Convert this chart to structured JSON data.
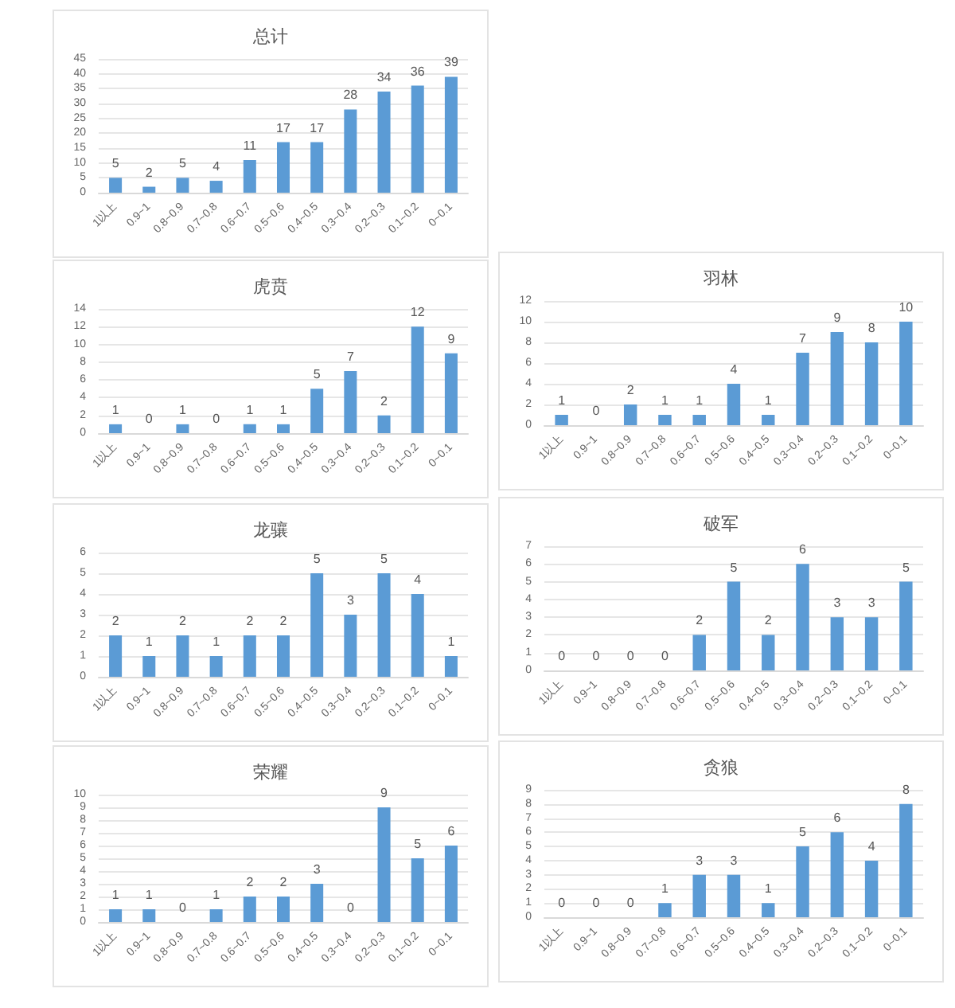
{
  "chart_data": [
    {
      "type": "bar",
      "title": "总计",
      "categories": [
        "1以上",
        "0.9~1",
        "0.8~0.9",
        "0.7~0.8",
        "0.6~0.7",
        "0.5~0.6",
        "0.4~0.5",
        "0.3~0.4",
        "0.2~0.3",
        "0.1~0.2",
        "0~0.1"
      ],
      "values": [
        5,
        2,
        5,
        4,
        11,
        17,
        17,
        28,
        34,
        36,
        39
      ],
      "color": "#5b9bd5",
      "ylim": [
        0,
        45
      ],
      "yticks": [
        0,
        5,
        10,
        15,
        20,
        25,
        30,
        35,
        40,
        45
      ],
      "grid": "y",
      "data_labels": true
    },
    {
      "type": "bar",
      "title": "虎贲",
      "categories": [
        "1以上",
        "0.9~1",
        "0.8~0.9",
        "0.7~0.8",
        "0.6~0.7",
        "0.5~0.6",
        "0.4~0.5",
        "0.3~0.4",
        "0.2~0.3",
        "0.1~0.2",
        "0~0.1"
      ],
      "values": [
        1,
        0,
        1,
        0,
        1,
        1,
        5,
        7,
        2,
        12,
        9
      ],
      "color": "#5b9bd5",
      "ylim": [
        0,
        14
      ],
      "yticks": [
        0,
        2,
        4,
        6,
        8,
        10,
        12,
        14
      ],
      "grid": "y",
      "data_labels": true
    },
    {
      "type": "bar",
      "title": "羽林",
      "categories": [
        "1以上",
        "0.9~1",
        "0.8~0.9",
        "0.7~0.8",
        "0.6~0.7",
        "0.5~0.6",
        "0.4~0.5",
        "0.3~0.4",
        "0.2~0.3",
        "0.1~0.2",
        "0~0.1"
      ],
      "values": [
        1,
        0,
        2,
        1,
        1,
        4,
        1,
        7,
        9,
        8,
        10
      ],
      "color": "#5b9bd5",
      "ylim": [
        0,
        12
      ],
      "yticks": [
        0,
        2,
        4,
        6,
        8,
        10,
        12
      ],
      "grid": "y",
      "data_labels": true
    },
    {
      "type": "bar",
      "title": "龙骧",
      "categories": [
        "1以上",
        "0.9~1",
        "0.8~0.9",
        "0.7~0.8",
        "0.6~0.7",
        "0.5~0.6",
        "0.4~0.5",
        "0.3~0.4",
        "0.2~0.3",
        "0.1~0.2",
        "0~0.1"
      ],
      "values": [
        2,
        1,
        2,
        1,
        2,
        2,
        5,
        3,
        5,
        4,
        1
      ],
      "color": "#5b9bd5",
      "ylim": [
        0,
        6
      ],
      "yticks": [
        0,
        1,
        2,
        3,
        4,
        5,
        6
      ],
      "grid": "y",
      "data_labels": true
    },
    {
      "type": "bar",
      "title": "破军",
      "categories": [
        "1以上",
        "0.9~1",
        "0.8~0.9",
        "0.7~0.8",
        "0.6~0.7",
        "0.5~0.6",
        "0.4~0.5",
        "0.3~0.4",
        "0.2~0.3",
        "0.1~0.2",
        "0~0.1"
      ],
      "values": [
        0,
        0,
        0,
        0,
        2,
        5,
        2,
        6,
        3,
        3,
        5
      ],
      "color": "#5b9bd5",
      "ylim": [
        0,
        7
      ],
      "yticks": [
        0,
        1,
        2,
        3,
        4,
        5,
        6,
        7
      ],
      "grid": "y",
      "data_labels": true
    },
    {
      "type": "bar",
      "title": "荣耀",
      "categories": [
        "1以上",
        "0.9~1",
        "0.8~0.9",
        "0.7~0.8",
        "0.6~0.7",
        "0.5~0.6",
        "0.4~0.5",
        "0.3~0.4",
        "0.2~0.3",
        "0.1~0.2",
        "0~0.1"
      ],
      "values": [
        1,
        1,
        0,
        1,
        2,
        2,
        3,
        0,
        9,
        5,
        6
      ],
      "color": "#5b9bd5",
      "ylim": [
        0,
        10
      ],
      "yticks": [
        0,
        1,
        2,
        3,
        4,
        5,
        6,
        7,
        8,
        9,
        10
      ],
      "grid": "y",
      "data_labels": true
    },
    {
      "type": "bar",
      "title": "贪狼",
      "categories": [
        "1以上",
        "0.9~1",
        "0.8~0.9",
        "0.7~0.8",
        "0.6~0.7",
        "0.5~0.6",
        "0.4~0.5",
        "0.3~0.4",
        "0.2~0.3",
        "0.1~0.2",
        "0~0.1"
      ],
      "values": [
        0,
        0,
        0,
        1,
        3,
        3,
        1,
        5,
        6,
        4,
        8
      ],
      "color": "#5b9bd5",
      "ylim": [
        0,
        9
      ],
      "yticks": [
        0,
        1,
        2,
        3,
        4,
        5,
        6,
        7,
        8,
        9
      ],
      "grid": "y",
      "data_labels": true
    }
  ]
}
